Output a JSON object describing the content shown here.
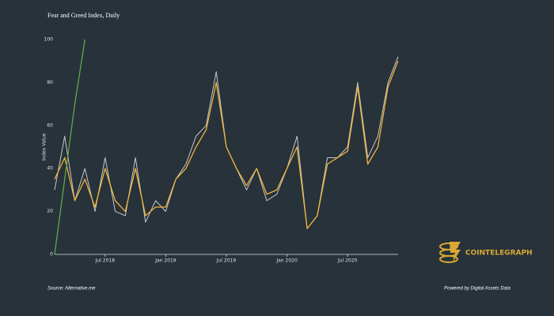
{
  "chart_data": {
    "type": "line",
    "title": "Fear and Greed Index, Daily",
    "ylabel": "Index Value",
    "source": "Source: Alternative.me",
    "credit": "Powered by Digital Assets Data",
    "brand": "COINTELEGRAPH",
    "xlim": [
      "2018-02",
      "2020-12"
    ],
    "xticks": [
      {
        "value": "2018-07",
        "label": "Jul 2018"
      },
      {
        "value": "2019-01",
        "label": "Jan 2019"
      },
      {
        "value": "2019-07",
        "label": "Jul 2019"
      },
      {
        "value": "2020-01",
        "label": "Jan 2020"
      },
      {
        "value": "2020-07",
        "label": "Jul 2020"
      }
    ],
    "ylim": [
      0,
      100
    ],
    "yticks": [
      0,
      20,
      40,
      60,
      80,
      100
    ],
    "series": [
      {
        "color": "#c9c9c9",
        "width": 1,
        "x": [
          "2018-02",
          "2018-03",
          "2018-04",
          "2018-05",
          "2018-06",
          "2018-07",
          "2018-08",
          "2018-09",
          "2018-10",
          "2018-11",
          "2018-12",
          "2019-01",
          "2019-02",
          "2019-03",
          "2019-04",
          "2019-05",
          "2019-06",
          "2019-07",
          "2019-08",
          "2019-09",
          "2019-10",
          "2019-11",
          "2019-12",
          "2020-01",
          "2020-02",
          "2020-03",
          "2020-04",
          "2020-05",
          "2020-06",
          "2020-07",
          "2020-08",
          "2020-09",
          "2020-10",
          "2020-11",
          "2020-12"
        ],
        "values": [
          30,
          55,
          25,
          40,
          20,
          45,
          20,
          18,
          45,
          15,
          25,
          20,
          35,
          42,
          55,
          60,
          85,
          50,
          40,
          30,
          40,
          25,
          28,
          40,
          55,
          12,
          18,
          45,
          45,
          50,
          80,
          45,
          55,
          80,
          92
        ]
      },
      {
        "color": "#f0b43c",
        "width": 1.3,
        "x": [
          "2018-02",
          "2018-03",
          "2018-04",
          "2018-05",
          "2018-06",
          "2018-07",
          "2018-08",
          "2018-09",
          "2018-10",
          "2018-11",
          "2018-12",
          "2019-01",
          "2019-02",
          "2019-03",
          "2019-04",
          "2019-05",
          "2019-06",
          "2019-07",
          "2019-08",
          "2019-09",
          "2019-10",
          "2019-11",
          "2019-12",
          "2020-01",
          "2020-02",
          "2020-03",
          "2020-04",
          "2020-05",
          "2020-06",
          "2020-07",
          "2020-08",
          "2020-09",
          "2020-10",
          "2020-11",
          "2020-12"
        ],
        "values": [
          35,
          45,
          25,
          35,
          22,
          40,
          25,
          20,
          40,
          18,
          22,
          22,
          35,
          40,
          50,
          58,
          80,
          50,
          40,
          32,
          40,
          28,
          30,
          40,
          50,
          12,
          18,
          42,
          45,
          48,
          78,
          42,
          50,
          78,
          90
        ]
      },
      {
        "color": "#5fa844",
        "width": 1.3,
        "x": [
          "2018-02",
          "2018-03",
          "2018-04",
          "2018-05"
        ],
        "values": [
          0,
          35,
          70,
          100
        ]
      }
    ]
  }
}
